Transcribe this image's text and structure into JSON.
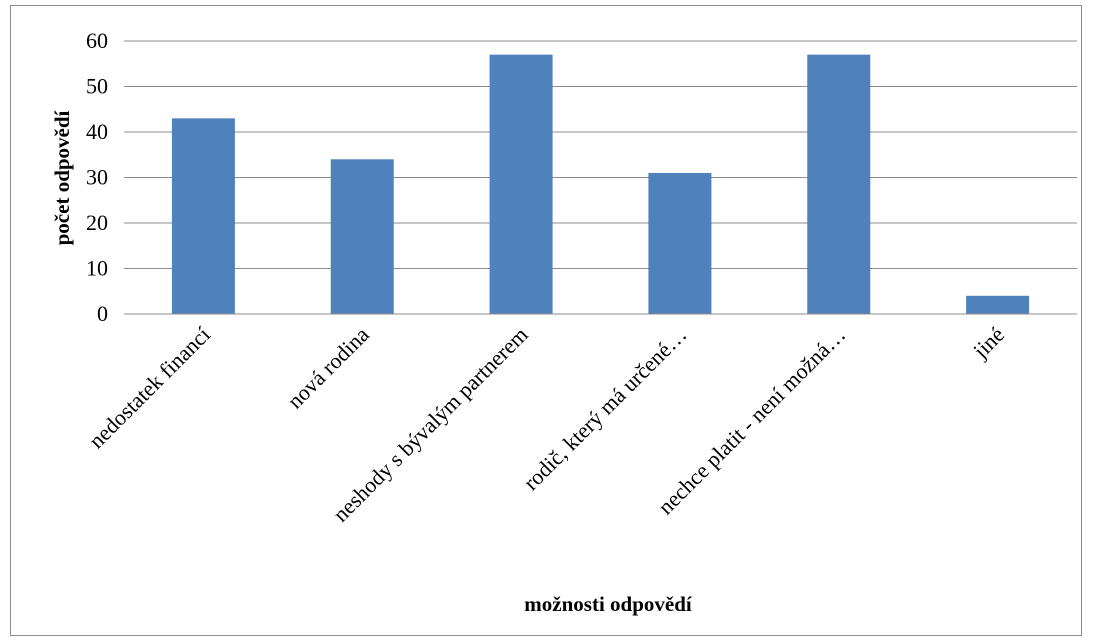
{
  "chart_data": {
    "type": "bar",
    "title": "",
    "xlabel": "možnosti odpovědí",
    "ylabel": "počet odpovědí",
    "categories": [
      "nedostatek financí",
      "nová rodina",
      "neshody s bývalým partnerem",
      "rodič, který má určené…",
      "nechce platit - není možná…",
      "jiné"
    ],
    "values": [
      43,
      34,
      57,
      31,
      57,
      4
    ],
    "ylim": [
      0,
      60
    ],
    "yticks": [
      0,
      10,
      20,
      30,
      40,
      50,
      60
    ],
    "grid": true,
    "legend": "none",
    "bar_color": "#4f81bd",
    "grid_color": "#8c8c8c"
  }
}
